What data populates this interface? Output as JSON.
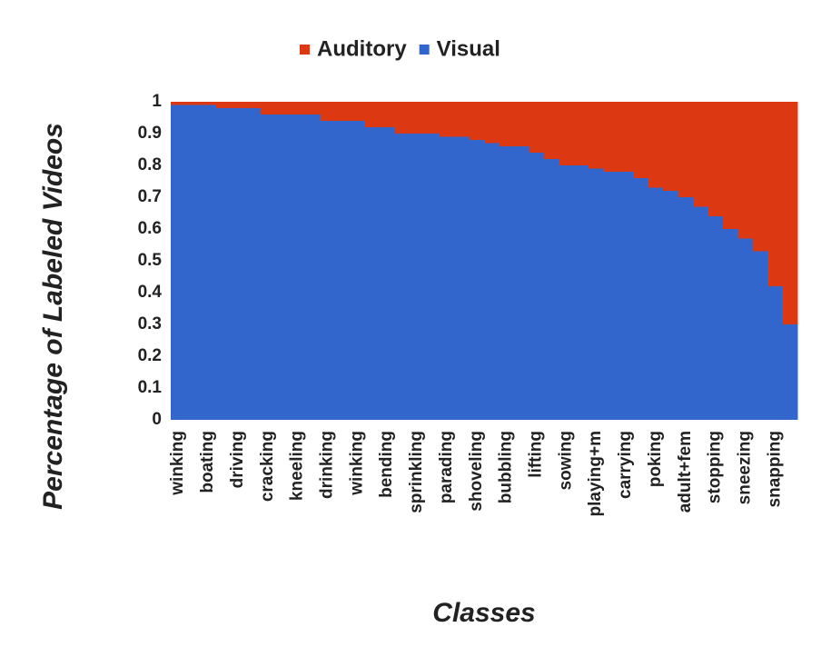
{
  "chart_data": {
    "type": "stacked_area",
    "x_label": "Classes",
    "y_label": "Percentage of Labeled Videos",
    "categories": [
      "winking",
      null,
      "boating",
      null,
      "driving",
      null,
      "cracking",
      null,
      "kneeling",
      null,
      "drinking",
      null,
      "winking",
      null,
      "bending",
      null,
      "sprinkling",
      null,
      "parading",
      null,
      "shoveling",
      null,
      "bubbling",
      null,
      "lifting",
      null,
      "sowing",
      null,
      "playing+m",
      null,
      "carrying",
      null,
      "poking",
      null,
      "adult+fem",
      null,
      "stopping",
      null,
      "sneezing",
      null,
      "snapping",
      null
    ],
    "series": [
      {
        "name": "Visual",
        "color": "#3366cc",
        "values": [
          0.99,
          0.99,
          0.99,
          0.98,
          0.98,
          0.98,
          0.96,
          0.96,
          0.96,
          0.96,
          0.94,
          0.94,
          0.94,
          0.92,
          0.92,
          0.9,
          0.9,
          0.9,
          0.89,
          0.89,
          0.88,
          0.87,
          0.86,
          0.86,
          0.84,
          0.82,
          0.8,
          0.8,
          0.79,
          0.78,
          0.78,
          0.76,
          0.73,
          0.72,
          0.7,
          0.67,
          0.64,
          0.6,
          0.57,
          0.53,
          0.42,
          0.3
        ]
      },
      {
        "name": "Auditory",
        "color": "#dc3912",
        "values": [
          0.01,
          0.01,
          0.01,
          0.02,
          0.02,
          0.02,
          0.04,
          0.04,
          0.04,
          0.04,
          0.06,
          0.06,
          0.06,
          0.08,
          0.08,
          0.1,
          0.1,
          0.1,
          0.11,
          0.11,
          0.12,
          0.13,
          0.14,
          0.14,
          0.16,
          0.18,
          0.2,
          0.2,
          0.21,
          0.22,
          0.22,
          0.24,
          0.27,
          0.28,
          0.3,
          0.33,
          0.36,
          0.4,
          0.43,
          0.47,
          0.58,
          0.7
        ]
      }
    ],
    "ylim": [
      0,
      1
    ],
    "yticks": [
      0,
      0.1,
      0.2,
      0.3,
      0.4,
      0.5,
      0.6,
      0.7,
      0.8,
      0.9,
      1
    ],
    "grid": false,
    "legend": "top"
  }
}
